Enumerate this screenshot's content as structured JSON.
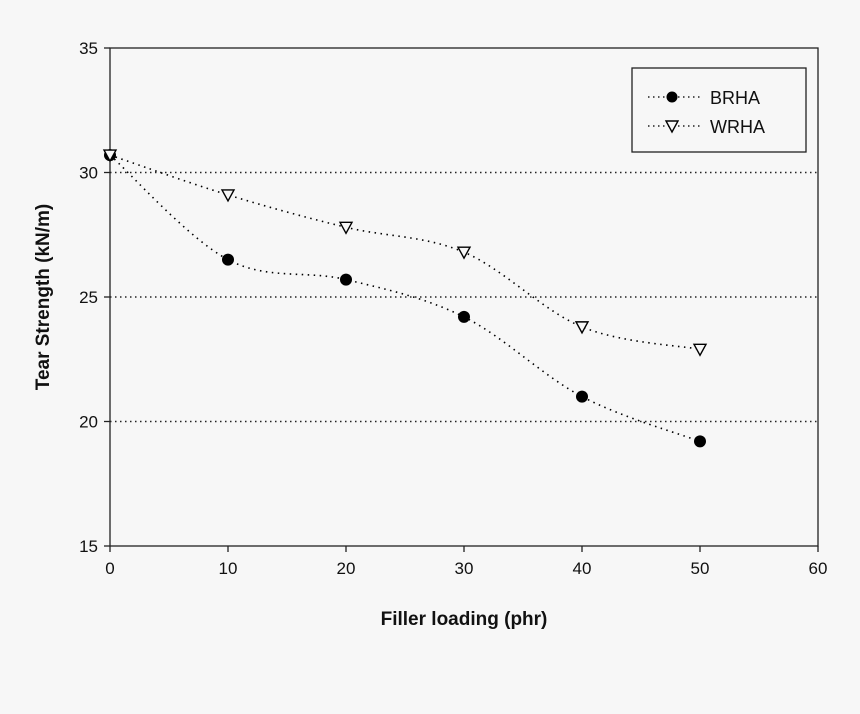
{
  "chart_data": {
    "type": "line",
    "title": "",
    "xlabel": "Filler loading (phr)",
    "ylabel": "Tear Strength (kN/m)",
    "xlim": [
      0,
      60
    ],
    "ylim": [
      15,
      35
    ],
    "xticks": [
      0,
      10,
      20,
      30,
      40,
      50,
      60
    ],
    "yticks": [
      15,
      20,
      25,
      30,
      35
    ],
    "grid": "horizontal dotted at 20, 25, 30",
    "legend_position": "top-right",
    "line_style": "dotted smooth",
    "x": [
      0,
      10,
      20,
      30,
      40,
      50
    ],
    "series": [
      {
        "name": "BRHA",
        "marker": "filled-circle",
        "color": "#000000",
        "values": [
          30.7,
          26.5,
          25.7,
          24.2,
          21.0,
          19.2
        ]
      },
      {
        "name": "WRHA",
        "marker": "open-down-triangle",
        "color": "#000000",
        "values": [
          30.7,
          29.1,
          27.8,
          26.8,
          23.8,
          22.9
        ]
      }
    ]
  }
}
